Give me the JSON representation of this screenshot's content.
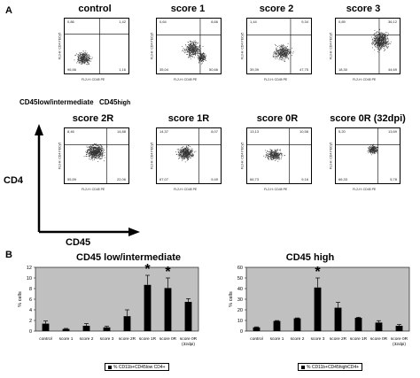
{
  "panels": {
    "a": "A",
    "b": "B"
  },
  "flow": {
    "plots": [
      {
        "title": "control",
        "q": [
          "0,86",
          "1,42",
          "96,56",
          "1,16"
        ],
        "ylab": "FL3-H: CD4 PECy5",
        "xlab": "FL2-H: CD45 PE"
      },
      {
        "title": "score 1",
        "q": [
          "0,64",
          "8,66",
          "35,04",
          "50,66"
        ],
        "ylab": "FL3-H: CD4 PECy5",
        "xlab": "FL2-H: CD45 PE"
      },
      {
        "title": "score 2",
        "q": [
          "1,44",
          "9,34",
          "39,39",
          "47,75"
        ],
        "ylab": "FL3-H: CD4 PECy5",
        "xlab": "FL2-H: CD45 PE"
      },
      {
        "title": "score 3",
        "q": [
          "0,89",
          "36,12",
          "18,30",
          "44,69"
        ],
        "ylab": "FL3-H: CD4 PECy5",
        "xlab": "FL2-H: CD45 PE"
      },
      {
        "title": "score 2R",
        "q": [
          "8,46",
          "14,88",
          "55,59",
          "22,06"
        ],
        "ylab": "FL3-H: CD4 PECy5",
        "xlab": "FL2-H: CD45 PE"
      },
      {
        "title": "score 1R",
        "q": [
          "14,37",
          "8,07",
          "67,07",
          "9,49"
        ],
        "ylab": "FL3-H: CD4 PECy5",
        "xlab": "FL2-H: CD45 PE"
      },
      {
        "title": "score 0R",
        "q": [
          "13,13",
          "10,58",
          "66,73",
          "9,16"
        ],
        "ylab": "FL3-H: CD4 PECy5",
        "xlab": "FL2-H: CD45 PE"
      },
      {
        "title": "score 0R (32dpi)",
        "q": [
          "5,20",
          "13,69",
          "66,33",
          "5,78"
        ],
        "ylab": "FL3-H: CD4 PECy5",
        "xlab": "FL2-H: CD45 PE"
      }
    ],
    "gate_low": "CD45low/intermediate",
    "gate_high": "CD45",
    "gate_high_sub": "high",
    "axis_y": "CD4",
    "axis_x": "CD45"
  },
  "chart_data": [
    {
      "type": "bar",
      "title": "CD45 low/intermediate",
      "ylabel": "% cells",
      "ylim": [
        0,
        12
      ],
      "yticks": [
        0,
        2,
        4,
        6,
        8,
        10,
        12
      ],
      "categories": [
        "control",
        "score 1",
        "score 2",
        "score 3",
        "score 2R",
        "score 1R",
        "score 0R",
        "score 0R (32dpi)"
      ],
      "values": [
        1.4,
        0.4,
        1.0,
        0.7,
        2.8,
        8.7,
        8.1,
        5.5
      ],
      "errors": [
        0.5,
        0.1,
        0.4,
        0.2,
        1.2,
        1.8,
        1.9,
        0.6
      ],
      "significant": [
        false,
        false,
        false,
        false,
        false,
        true,
        true,
        false
      ],
      "legend": "% CD11b+CD45low CD4+",
      "grid": false
    },
    {
      "type": "bar",
      "title": "CD45 high",
      "ylabel": "% cells",
      "ylim": [
        0,
        60
      ],
      "yticks": [
        0,
        10,
        20,
        30,
        40,
        50,
        60
      ],
      "categories": [
        "control",
        "score 1",
        "score 2",
        "score 3",
        "score 2R",
        "score 1R",
        "score 0R",
        "score 0R (32dpi)"
      ],
      "values": [
        3.5,
        9.5,
        12.0,
        41.0,
        22.0,
        12.5,
        8.0,
        5.0
      ],
      "errors": [
        0.5,
        0.4,
        0.4,
        9.0,
        5.0,
        0.5,
        1.8,
        1.2
      ],
      "significant": [
        false,
        false,
        false,
        true,
        false,
        false,
        false,
        false
      ],
      "legend": "% CD11b+CD45highCD4+",
      "grid": false
    }
  ],
  "colors": {
    "bar": "#000000",
    "plot_bg": "#c0c0c0",
    "outer_bg": "#ffffff"
  }
}
